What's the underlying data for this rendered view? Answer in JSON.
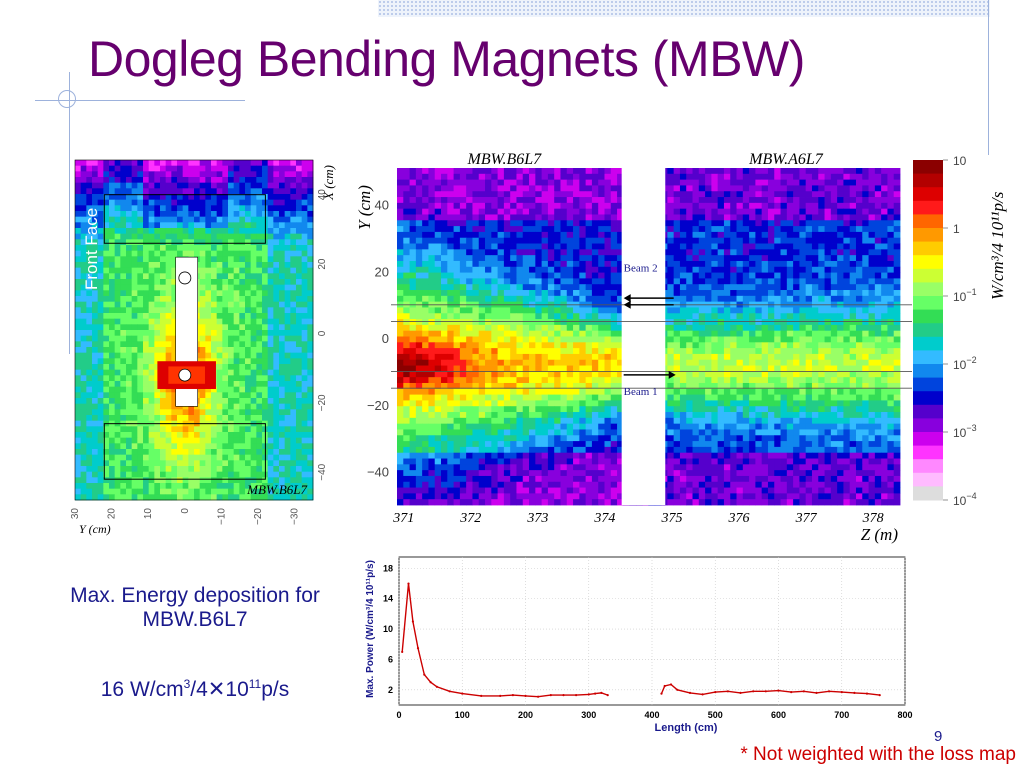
{
  "slide": {
    "title": "Dogleg Bending Magnets (MBW)",
    "caption_line1": "Max. Energy deposition for",
    "caption_line2": "MBW.B6L7",
    "value_main": "16 W/cm",
    "value_sup1": "3",
    "value_mid": "/4✕10",
    "value_sup2": "11",
    "value_end": "p/s",
    "footnote": "* Not weighted with the loss map",
    "page_number": "9"
  },
  "colors": {
    "title": "#66006e",
    "text": "#1a1a8c",
    "footnote": "#cc0000",
    "line_plot": "#cc0000",
    "decoration": "#9db2dc"
  },
  "chart_data": [
    {
      "type": "heatmap",
      "panel": "front-face",
      "panel_label": "Front Face",
      "magnet_label": "MBW.B6L7",
      "xlabel": "Y (cm)",
      "ylabel": "X (cm)",
      "x_ticks": [
        "30",
        "20",
        "10",
        "0",
        "−10",
        "−20",
        "−30"
      ],
      "y_ticks": [
        "40",
        "20",
        "0",
        "−20",
        "−40"
      ],
      "xlim": [
        30,
        -35
      ],
      "ylim": [
        -48,
        50
      ]
    },
    {
      "type": "heatmap",
      "panel": "side-view",
      "magnet_labels": [
        "MBW.B6L7",
        "MBW.A6L7"
      ],
      "beam_labels": [
        "Beam 2",
        "Beam 1"
      ],
      "xlabel": "Z (m)",
      "ylabel": "Y (cm)",
      "colorbar_label": "W/cm³/4 10¹¹p/s",
      "x_ticks": [
        "371",
        "372",
        "373",
        "374",
        "375",
        "376",
        "377",
        "378"
      ],
      "y_ticks": [
        "40",
        "20",
        "0",
        "−20",
        "−40"
      ],
      "xlim": [
        370.9,
        378.4
      ],
      "ylim": [
        -50,
        51
      ],
      "gap_z": [
        374.25,
        374.9
      ],
      "colorbar_ticks": [
        {
          "text": "10",
          "sup": ""
        },
        {
          "text": "1",
          "sup": ""
        },
        {
          "text": "10",
          "sup": "−1"
        },
        {
          "text": "10",
          "sup": "−2"
        },
        {
          "text": "10",
          "sup": "−3"
        },
        {
          "text": "10",
          "sup": "−4"
        }
      ],
      "colorbar_colors": [
        "#8b0000",
        "#b30000",
        "#dd0000",
        "#ff1a1a",
        "#ff6600",
        "#ff9900",
        "#ffcc00",
        "#ffff00",
        "#ccff33",
        "#99ff66",
        "#66ff66",
        "#33dd55",
        "#22cc88",
        "#00cccc",
        "#33bbff",
        "#1188ee",
        "#0044dd",
        "#0000cc",
        "#5500cc",
        "#8800dd",
        "#cc00ee",
        "#ff33ff",
        "#ff88ff",
        "#ffbbff",
        "#dddddd"
      ],
      "colorbar_range": [
        0.0001,
        10
      ],
      "colorbar_scale": "log"
    },
    {
      "type": "line",
      "xlabel": "Length  (cm)",
      "ylabel": "Max. Power (W/cm³/4 10¹¹p/s)",
      "xlim": [
        0,
        800
      ],
      "ylim": [
        0,
        19.5
      ],
      "x_ticks": [
        0,
        100,
        200,
        300,
        400,
        500,
        600,
        700,
        800
      ],
      "y_ticks": [
        2,
        6,
        10,
        14,
        18
      ],
      "series": [
        {
          "segments": [
            {
              "x": [
                5,
                15,
                22,
                30,
                40,
                50,
                60,
                80,
                100,
                130,
                160,
                180,
                200,
                220,
                240,
                260,
                280,
                300,
                310,
                320,
                330
              ],
              "y": [
                7,
                16,
                11,
                7.5,
                4,
                3,
                2.4,
                1.8,
                1.5,
                1.2,
                1.2,
                1.3,
                1.2,
                1.1,
                1.3,
                1.3,
                1.3,
                1.4,
                1.5,
                1.6,
                1.3
              ]
            },
            {
              "x": [
                415,
                420,
                430,
                440,
                460,
                480,
                500,
                520,
                540,
                560,
                580,
                600,
                620,
                640,
                660,
                680,
                700,
                720,
                740,
                760
              ],
              "y": [
                1.5,
                2.5,
                2.7,
                2.0,
                1.6,
                1.4,
                1.7,
                1.8,
                1.6,
                1.8,
                1.8,
                1.9,
                1.7,
                1.8,
                1.6,
                1.8,
                1.7,
                1.6,
                1.5,
                1.3
              ]
            }
          ]
        }
      ]
    }
  ]
}
